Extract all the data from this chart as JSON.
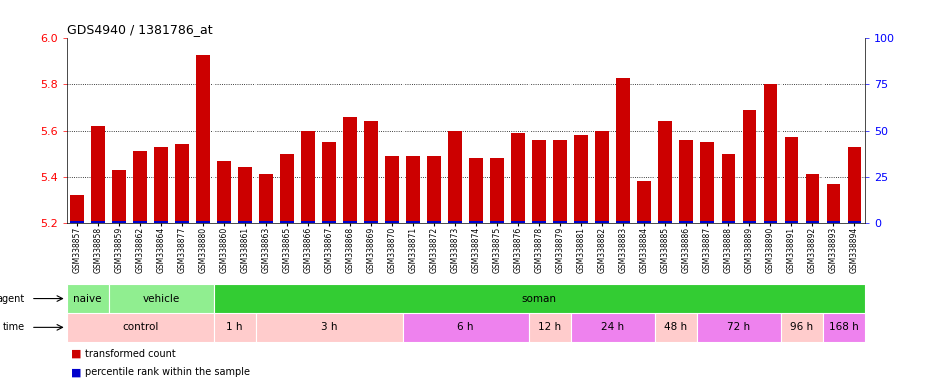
{
  "title": "GDS4940 / 1381786_at",
  "samples": [
    "GSM338857",
    "GSM338858",
    "GSM338859",
    "GSM338862",
    "GSM338864",
    "GSM338877",
    "GSM338880",
    "GSM338860",
    "GSM338861",
    "GSM338863",
    "GSM338865",
    "GSM338866",
    "GSM338867",
    "GSM338868",
    "GSM338869",
    "GSM338870",
    "GSM338871",
    "GSM338872",
    "GSM338873",
    "GSM338874",
    "GSM338875",
    "GSM338876",
    "GSM338878",
    "GSM338879",
    "GSM338881",
    "GSM338882",
    "GSM338883",
    "GSM338884",
    "GSM338885",
    "GSM338886",
    "GSM338887",
    "GSM338888",
    "GSM338889",
    "GSM338890",
    "GSM338891",
    "GSM338892",
    "GSM338893",
    "GSM338894"
  ],
  "red_values": [
    5.32,
    5.62,
    5.43,
    5.51,
    5.53,
    5.54,
    5.93,
    5.47,
    5.44,
    5.41,
    5.5,
    5.6,
    5.55,
    5.66,
    5.64,
    5.49,
    5.49,
    5.49,
    5.6,
    5.48,
    5.48,
    5.59,
    5.56,
    5.56,
    5.58,
    5.6,
    5.83,
    5.38,
    5.64,
    5.56,
    5.55,
    5.5,
    5.69,
    5.8,
    5.57,
    5.41,
    5.37,
    5.53
  ],
  "blue_heights": [
    0.008,
    0.008,
    0.008,
    0.008,
    0.008,
    0.008,
    0.008,
    0.008,
    0.008,
    0.008,
    0.008,
    0.008,
    0.008,
    0.008,
    0.008,
    0.008,
    0.008,
    0.008,
    0.008,
    0.008,
    0.008,
    0.008,
    0.008,
    0.008,
    0.008,
    0.008,
    0.008,
    0.008,
    0.008,
    0.008,
    0.008,
    0.008,
    0.008,
    0.008,
    0.008,
    0.008,
    0.008,
    0.008
  ],
  "ymin": 5.2,
  "ymax": 6.0,
  "yticks_left": [
    5.2,
    5.4,
    5.6,
    5.8,
    6.0
  ],
  "yticks_right": [
    0,
    25,
    50,
    75,
    100
  ],
  "agent_groups": [
    {
      "label": "naive",
      "start": 0,
      "end": 2,
      "color": "#90EE90"
    },
    {
      "label": "vehicle",
      "start": 2,
      "end": 7,
      "color": "#90EE90"
    },
    {
      "label": "soman",
      "start": 7,
      "end": 38,
      "color": "#33CC33"
    }
  ],
  "agent_separators": [
    2,
    7
  ],
  "time_groups": [
    {
      "label": "control",
      "start": 0,
      "end": 7,
      "color": "#FFCCCC"
    },
    {
      "label": "1 h",
      "start": 7,
      "end": 9,
      "color": "#FFCCCC"
    },
    {
      "label": "3 h",
      "start": 9,
      "end": 16,
      "color": "#FFCCCC"
    },
    {
      "label": "6 h",
      "start": 16,
      "end": 22,
      "color": "#EE82EE"
    },
    {
      "label": "12 h",
      "start": 22,
      "end": 24,
      "color": "#FFCCCC"
    },
    {
      "label": "24 h",
      "start": 24,
      "end": 28,
      "color": "#EE82EE"
    },
    {
      "label": "48 h",
      "start": 28,
      "end": 30,
      "color": "#FFCCCC"
    },
    {
      "label": "72 h",
      "start": 30,
      "end": 34,
      "color": "#EE82EE"
    },
    {
      "label": "96 h",
      "start": 34,
      "end": 36,
      "color": "#FFCCCC"
    },
    {
      "label": "168 h",
      "start": 36,
      "end": 38,
      "color": "#EE82EE"
    }
  ],
  "time_separators": [
    7,
    9,
    16,
    22,
    24,
    28,
    30,
    34,
    36
  ],
  "bar_color_red": "#CC0000",
  "bar_color_blue": "#0000CC",
  "legend_labels": [
    "transformed count",
    "percentile rank within the sample"
  ]
}
